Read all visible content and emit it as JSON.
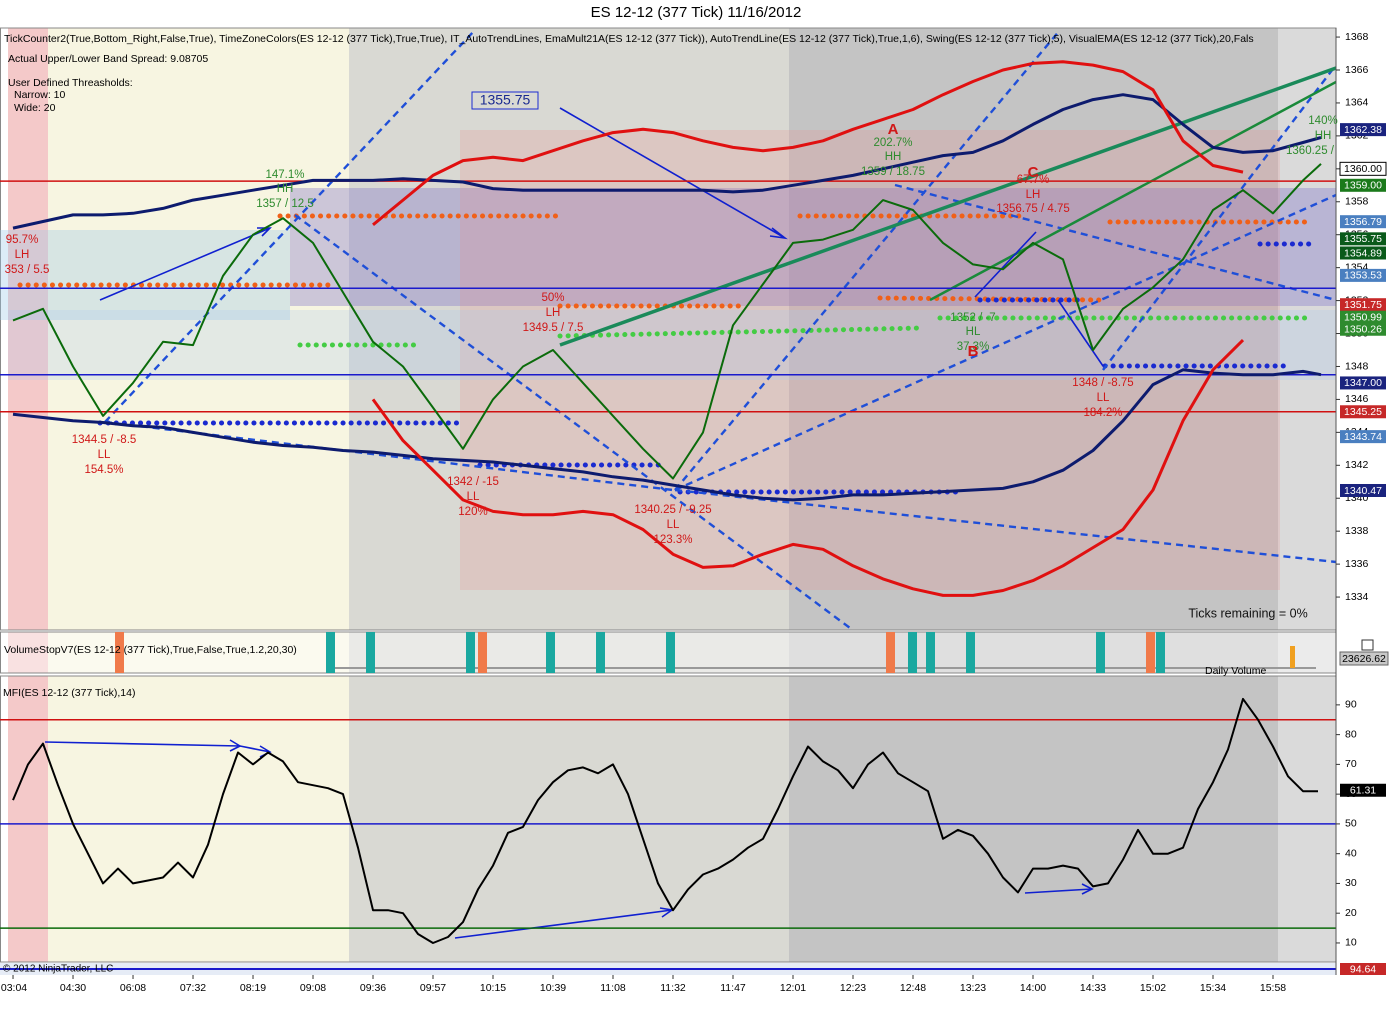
{
  "title": "ES 12-12 (377 Tick)  11/16/2012",
  "chart_data": [
    {
      "type": "line",
      "label": "TickCounter2(True,Bottom_Right,False,True), TimeZoneColors(ES 12-12 (377 Tick),True,True),  IT_AutoTrendLines, EmaMult21A(ES 12-12 (377 Tick)), AutoTrendLine(ES 12-12 (377 Tick),True,1,6), Swing(ES 12-12 (377 Tick),5), VisualEMA(ES 12-12 (377 Tick),20,Fals",
      "band_spread": "Actual Upper/Lower Band Spread: 9.08705",
      "thresholds": "User Defined Threasholds:",
      "narrow": "Narrow: 10",
      "wide": "Wide: 20",
      "price_box": "1355.75",
      "annotations": [
        "147.1%",
        "HH",
        "1357 / 12.5",
        "95.7%",
        "LH",
        "353 / 5.5",
        "1344.5 / -8.5",
        "LL",
        "154.5%",
        "50%",
        "LH",
        "1349.5 / 7.5",
        "1342 / -15",
        "LL",
        "120%",
        "1340.25 / -9.25",
        "LL",
        "123.3%",
        "202.7%",
        "HH",
        "1359 / 18.75",
        "A",
        "67.7%",
        "LH",
        "1356.75 / 4.75",
        "C",
        "1352 / -7",
        "HL",
        "37.3%",
        "B",
        "1348 / -8.75",
        "LL",
        "184.2%",
        "140%",
        "HH",
        "1360.25 /",
        "Ticks remaining = 0%"
      ],
      "x": [
        0,
        0.5,
        1,
        1.5,
        2,
        2.5,
        3,
        3.5,
        4,
        4.5,
        5,
        5.5,
        6,
        6.5,
        7,
        7.5,
        8,
        8.5,
        9,
        9.5,
        10,
        10.5,
        11,
        11.5,
        12,
        12.5,
        13,
        13.5,
        14,
        14.5,
        15,
        15.5,
        16,
        16.5,
        17,
        17.5,
        18,
        18.5,
        19,
        19.5,
        20,
        20.5,
        21,
        21.5,
        21.8
      ],
      "series": [
        {
          "color": "#0b6b0b",
          "values": [
            1350.8,
            1351.5,
            1348,
            1345,
            1347,
            1349.5,
            1349.3,
            1353.5,
            1356,
            1357,
            1355.5,
            1352.5,
            1349.5,
            1348,
            1345.5,
            1343,
            1346,
            1348,
            1349,
            1347,
            1345,
            1343,
            1341.2,
            1344,
            1350.5,
            1353,
            1355.5,
            1355.7,
            1356.3,
            1358.1,
            1357.5,
            1355.5,
            1354.2,
            1353.9,
            1355.5,
            1354.5,
            1349,
            1351.5,
            1352.8,
            1354.5,
            1357.5,
            1358.7,
            1357.3,
            1359.3,
            1360.3
          ]
        },
        {
          "color": "#0d1b6e",
          "values": [
            1356.4,
            1356.8,
            1357.2,
            1357.2,
            1357.3,
            1357.6,
            1358.1,
            1358.4,
            1358.7,
            1359,
            1359.3,
            1359.3,
            1359.3,
            1359.4,
            1359.3,
            1359.2,
            1358.8,
            1358.7,
            1358.7,
            1358.7,
            1358.7,
            1358.7,
            1358.7,
            1358.7,
            1358.6,
            1358.7,
            1359,
            1359.3,
            1359.6,
            1360,
            1360.4,
            1360.8,
            1361,
            1361.7,
            1362.7,
            1363.6,
            1364.2,
            1364.5,
            1364.2,
            1362.7,
            1361.3,
            1361,
            1361.1,
            1361.6,
            1361.9
          ]
        },
        {
          "color": "#0d1b6e",
          "values": [
            1345.1,
            1344.9,
            1344.7,
            1344.6,
            1344.4,
            1344.3,
            1344,
            1343.7,
            1343.4,
            1343.2,
            1343.1,
            1342.9,
            1342.8,
            1342.6,
            1342.4,
            1342.3,
            1342.2,
            1342,
            1341.8,
            1341.6,
            1341.3,
            1341.1,
            1340.8,
            1340.5,
            1340.2,
            1340,
            1339.9,
            1340,
            1340.2,
            1340.2,
            1340.3,
            1340.4,
            1340.5,
            1340.6,
            1341,
            1341.7,
            1342.9,
            1344.7,
            1346.9,
            1347.8,
            1347.6,
            1347.5,
            1347.5,
            1347.7,
            1347.5
          ]
        },
        {
          "color": "#e01010",
          "values": [
            null,
            null,
            null,
            null,
            null,
            null,
            null,
            null,
            null,
            null,
            null,
            null,
            1356.6,
            1358.1,
            1359.6,
            1360.5,
            1360.7,
            1360.5,
            1361.1,
            1361.7,
            1362.2,
            1362.4,
            1362.2,
            1361.7,
            1361.3,
            1361.1,
            1361.3,
            1361.7,
            1362.4,
            1363,
            1363.6,
            1364.5,
            1365.3,
            1366,
            1366.4,
            1366.5,
            1366.3,
            1365.9,
            1364.8,
            1361.7,
            1360.2,
            1359.8,
            null,
            null,
            null
          ]
        },
        {
          "color": "#e01010",
          "values": [
            null,
            null,
            null,
            null,
            null,
            null,
            null,
            null,
            null,
            null,
            null,
            null,
            1346,
            1343.5,
            1341.7,
            1339.9,
            1339.2,
            1339,
            1339,
            1339.2,
            1339,
            1338.1,
            1336.6,
            1335.8,
            1335.9,
            1336.6,
            1337.2,
            1336.9,
            1335.9,
            1335.1,
            1334.5,
            1334.1,
            1334.1,
            1334.4,
            1335,
            1335.9,
            1337,
            1338.1,
            1340.5,
            1344.7,
            1347.8,
            1349.6,
            null,
            null,
            null
          ]
        }
      ],
      "xlim": [
        -0.217,
        22.05
      ],
      "ylim": [
        1332,
        1368.55
      ],
      "yticks": [
        1334,
        1336,
        1338,
        1340,
        1342,
        1344,
        1346,
        1348,
        1350,
        1352,
        1354,
        1356,
        1358,
        1360,
        1362,
        1364,
        1366,
        1368
      ],
      "levels": [
        {
          "value": 1359.25,
          "color": "#d01010"
        },
        {
          "value": 1352.75,
          "color": "#1a1acc"
        },
        {
          "value": 1347.5,
          "color": "#1a1acc"
        },
        {
          "value": 1345.25,
          "color": "#d01010"
        }
      ],
      "markers": [
        {
          "value": 1362.38,
          "label": "1362.38",
          "color": "#1a237e"
        },
        {
          "value": 1360,
          "label": "1360.00",
          "color": "#ffffff"
        },
        {
          "value": 1359,
          "label": "1359.00",
          "color": "#1b7a1b"
        },
        {
          "value": 1356.79,
          "label": "1356.79",
          "color": "#4a7fc0"
        },
        {
          "value": 1355.75,
          "label": "1355.75",
          "color": "#0a5a1a"
        },
        {
          "value": 1354.89,
          "label": "1354.89",
          "color": "#0a5a1a"
        },
        {
          "value": 1353.53,
          "label": "1353.53",
          "color": "#4a7fc0"
        },
        {
          "value": 1351.75,
          "label": "1351.75",
          "color": "#c62828"
        },
        {
          "value": 1350.99,
          "label": "1350.99",
          "color": "#2e8b2e"
        },
        {
          "value": 1350.26,
          "label": "1350.26",
          "color": "#2e8b2e"
        },
        {
          "value": 1347,
          "label": "1347.00",
          "color": "#1a237e"
        },
        {
          "value": 1345.25,
          "label": "1345.25",
          "color": "#c62828"
        },
        {
          "value": 1343.74,
          "label": "1343.74",
          "color": "#4a7fc0"
        },
        {
          "value": 1340.47,
          "label": "1340.47",
          "color": "#1a237e"
        }
      ]
    },
    {
      "type": "volume",
      "label": "VolumeStopV7(ES 12-12 (377 Tick),True,False,True,1.2,20,30)",
      "footer": "Daily Volume",
      "marker": {
        "value": 23626.62,
        "label": "23626.62",
        "color": "#c8c8c8"
      }
    },
    {
      "type": "line",
      "label": "MFI(ES 12-12 (377 Tick),14)",
      "x": [
        0,
        0.25,
        0.5,
        0.75,
        1,
        1.25,
        1.5,
        1.75,
        2,
        2.25,
        2.5,
        2.75,
        3,
        3.25,
        3.5,
        3.75,
        4,
        4.25,
        4.5,
        4.75,
        5,
        5.25,
        5.5,
        5.75,
        6,
        6.25,
        6.5,
        6.75,
        7,
        7.25,
        7.5,
        7.75,
        8,
        8.25,
        8.5,
        8.75,
        9,
        9.25,
        9.5,
        9.75,
        10,
        10.25,
        10.5,
        10.75,
        11,
        11.25,
        11.5,
        11.75,
        12,
        12.25,
        12.5,
        12.75,
        13,
        13.25,
        13.5,
        13.75,
        14,
        14.25,
        14.5,
        14.75,
        15,
        15.25,
        15.5,
        15.75,
        16,
        16.25,
        16.5,
        16.75,
        17,
        17.25,
        17.5,
        17.75,
        18,
        18.25,
        18.5,
        18.75,
        19,
        19.25,
        19.5,
        19.75,
        20,
        20.25,
        20.5,
        20.75,
        21,
        21.25,
        21.5,
        21.75
      ],
      "series": [
        {
          "color": "#000000",
          "values": [
            58,
            70,
            77,
            63,
            50,
            40,
            30,
            35,
            30,
            31,
            32,
            37,
            32,
            43,
            60,
            74,
            70,
            74,
            71,
            64,
            63,
            62,
            60,
            42,
            21,
            21,
            20,
            13,
            10,
            12,
            17,
            28,
            36,
            47,
            49,
            58,
            64,
            68,
            69,
            67,
            70,
            60,
            45,
            30,
            21,
            28,
            33,
            35,
            38,
            42,
            45,
            55,
            66,
            76,
            71,
            68,
            62,
            70,
            74,
            67,
            64,
            61,
            45,
            48,
            46,
            40,
            32,
            27,
            35,
            35,
            36,
            35,
            29,
            30,
            38,
            48,
            40,
            40,
            42,
            55,
            64,
            75,
            92,
            85,
            76,
            66,
            61,
            61
          ]
        }
      ],
      "xlim": [
        -0.217,
        22.05
      ],
      "ylim": [
        3.6,
        99.7
      ],
      "yticks": [
        10,
        20,
        30,
        40,
        50,
        60,
        70,
        80,
        90
      ],
      "levels": [
        {
          "value": 85,
          "color": "#d01010"
        },
        {
          "value": 50,
          "color": "#1a1acc"
        },
        {
          "value": 15,
          "color": "#0a6a0a"
        }
      ],
      "markers": [
        {
          "value": 61.31,
          "label": "61.31",
          "color": "#000000"
        }
      ],
      "xticks": [
        {
          "value": 0,
          "label": "03:04"
        },
        {
          "value": 1,
          "label": "04:30"
        },
        {
          "value": 2,
          "label": "06:08"
        },
        {
          "value": 3,
          "label": "07:32"
        },
        {
          "value": 4,
          "label": "08:19"
        },
        {
          "value": 5,
          "label": "09:08"
        },
        {
          "value": 6,
          "label": "09:36"
        },
        {
          "value": 7,
          "label": "09:57"
        },
        {
          "value": 8,
          "label": "10:15"
        },
        {
          "value": 9,
          "label": "10:39"
        },
        {
          "value": 10,
          "label": "11:08"
        },
        {
          "value": 11,
          "label": "11:32"
        },
        {
          "value": 12,
          "label": "11:47"
        },
        {
          "value": 13,
          "label": "12:01"
        },
        {
          "value": 14,
          "label": "12:23"
        },
        {
          "value": 15,
          "label": "12:48"
        },
        {
          "value": 16,
          "label": "13:23"
        },
        {
          "value": 17,
          "label": "14:00"
        },
        {
          "value": 18,
          "label": "14:33"
        },
        {
          "value": 19,
          "label": "15:02"
        },
        {
          "value": 20,
          "label": "15:34"
        },
        {
          "value": 21,
          "label": "15:58"
        }
      ]
    }
  ],
  "strip": {
    "text": "© 2012 NinjaTrader, LLC",
    "value_label": "94.64"
  }
}
